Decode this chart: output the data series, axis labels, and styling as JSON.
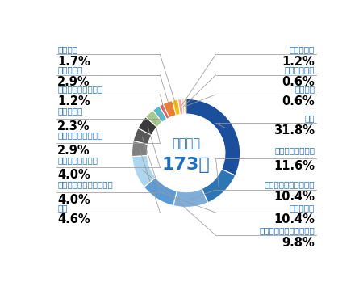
{
  "title_line1": "休業災害",
  "title_line2": "173件",
  "title_color": "#1E6FBF",
  "slices": [
    {
      "label": "転倒",
      "pct": 31.8,
      "color": "#1B4F9B"
    },
    {
      "label": "交通事故（道路）",
      "pct": 11.6,
      "color": "#2E75B6"
    },
    {
      "label": "動作の反動・無理動作",
      "pct": 10.4,
      "color": "#7FAEDB"
    },
    {
      "label": "墜落・転落",
      "pct": 10.4,
      "color": "#5B9BD5"
    },
    {
      "label": "高温・低温の物との接触",
      "pct": 9.8,
      "color": "#AED6EF"
    },
    {
      "label": "激突",
      "pct": 4.6,
      "color": "#808080"
    },
    {
      "label": "機械挟まれ・巻き込まれ",
      "pct": 4.0,
      "color": "#595959"
    },
    {
      "label": "有害物等との接触",
      "pct": 4.0,
      "color": "#3A3A3A"
    },
    {
      "label": "挟まれ・巻き込まれ",
      "pct": 2.9,
      "color": "#A5C98A"
    },
    {
      "label": "飛来・落下",
      "pct": 2.3,
      "color": "#5BB8C9"
    },
    {
      "label": "交通事故（その他）",
      "pct": 1.2,
      "color": "#E06060"
    },
    {
      "label": "その他の型",
      "pct": 2.9,
      "color": "#ED7D31"
    },
    {
      "label": "分類不能",
      "pct": 1.7,
      "color": "#FFC000"
    },
    {
      "label": "火災・爆発",
      "pct": 1.2,
      "color": "#F4AAAA"
    },
    {
      "label": "切れ・こすれ",
      "pct": 0.6,
      "color": "#F4C8B0"
    },
    {
      "label": "激突され",
      "pct": 0.6,
      "color": "#FFE082"
    }
  ],
  "left_labels": [
    {
      "label": "分類不能",
      "pct": "1.7",
      "multiline": false
    },
    {
      "label": "その他の型",
      "pct": "2.9",
      "multiline": false
    },
    {
      "label": "交通事故（その他）",
      "pct": "1.2",
      "multiline": false
    },
    {
      "label": "飛来・落下",
      "pct": "2.3",
      "multiline": true
    },
    {
      "label": "挟まれ・巻き込まれ",
      "pct": "2.9",
      "multiline": true
    },
    {
      "label": "有害物等との接触",
      "pct": "4.0",
      "multiline": true
    },
    {
      "label": "機械挟まれ・巻き込まれ",
      "pct": "4.0",
      "multiline": true
    },
    {
      "label": "激突",
      "pct": "4.6",
      "multiline": false
    }
  ],
  "right_labels": [
    {
      "label": "火災・爆発",
      "pct": "1.2",
      "multiline": false
    },
    {
      "label": "切れ・こすれ",
      "pct": "0.6",
      "multiline": false
    },
    {
      "label": "激突され",
      "pct": "0.6",
      "multiline": false
    },
    {
      "label": "転倒",
      "pct": "31.8",
      "multiline": false
    },
    {
      "label": "交通事故（道路）",
      "pct": "11.6",
      "multiline": true
    },
    {
      "label": "動作の反動・無理動作",
      "pct": "10.4",
      "multiline": false
    },
    {
      "label": "墜落・転落",
      "pct": "10.4",
      "multiline": false
    },
    {
      "label": "高温・低温の物との接触",
      "pct": "9.8",
      "multiline": false
    }
  ],
  "bg_color": "#FFFFFF",
  "line_color": "#999999",
  "label_color": "#1E6FBF",
  "pct_color": "#000000",
  "label_fontsize": 7.5,
  "pct_fontsize": 10.5
}
